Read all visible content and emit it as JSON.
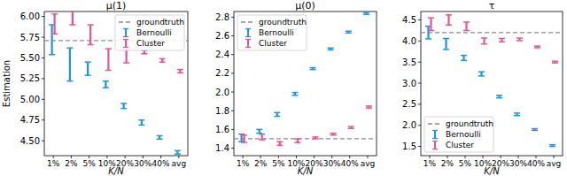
{
  "chart_data": [
    {
      "type": "errorbar",
      "title": "μ(1)",
      "x_label": "K/N",
      "y_label": "Estimation",
      "categories": [
        "1%",
        "2%",
        "5%",
        "10%",
        "20%",
        "30%",
        "40%",
        "avg"
      ],
      "ylim": [
        4.32,
        6.06
      ],
      "yticks": [
        {
          "value": 4.5,
          "label": "4.50"
        },
        {
          "value": 4.75,
          "label": "4.75"
        },
        {
          "value": 5,
          "label": "5.00"
        },
        {
          "value": 5.25,
          "label": "5.25"
        },
        {
          "value": 5.5,
          "label": "5.50"
        },
        {
          "value": 5.75,
          "label": "5.75"
        },
        {
          "value": 6,
          "label": "6.00"
        }
      ],
      "groundtruth": {
        "name": "groundtruth",
        "value": 5.71,
        "color": "#8c8c8c",
        "line_style": "dashed"
      },
      "series": [
        {
          "name": "Bernoulli",
          "color": "#1f96d8",
          "values": [
            5.72,
            5.42,
            5.37,
            5.18,
            4.92,
            4.72,
            4.54,
            4.36
          ],
          "errors": [
            0.18,
            0.2,
            0.08,
            0.04,
            0.03,
            0.03,
            0.02,
            0.02
          ]
        },
        {
          "name": "Cluster",
          "color": "#e6558f",
          "values": [
            5.91,
            6.0,
            5.78,
            5.48,
            5.52,
            5.57,
            5.47,
            5.34
          ],
          "errors": [
            0.12,
            0.1,
            0.12,
            0.13,
            0.08,
            0.02,
            0.02,
            0.02
          ]
        }
      ],
      "legend": "upper right",
      "grid": false
    },
    {
      "type": "errorbar",
      "title": "μ(0)",
      "x_label": "K/N",
      "categories": [
        "1%",
        "2%",
        "5%",
        "10%",
        "20%",
        "30%",
        "40%",
        "avg"
      ],
      "ylim": [
        1.32,
        2.86
      ],
      "yticks": [
        1.4,
        1.6,
        1.8,
        {
          "value": 2,
          "label": "2.0"
        },
        2.2,
        2.4,
        2.6,
        2.8
      ],
      "groundtruth": {
        "name": "groundtruth",
        "value": 1.5,
        "color": "#8c8c8c",
        "line_style": "dashed"
      },
      "series": [
        {
          "name": "Bernoulli",
          "color": "#1f96d8",
          "values": [
            1.51,
            1.58,
            1.76,
            1.98,
            2.25,
            2.46,
            2.64,
            2.84
          ],
          "errors": [
            0.04,
            0.02,
            0.02,
            0.015,
            0.01,
            0.01,
            0.01,
            0.01
          ]
        },
        {
          "name": "Cluster",
          "color": "#e6558f",
          "values": [
            1.5,
            1.52,
            1.45,
            1.48,
            1.51,
            1.55,
            1.62,
            1.84
          ],
          "errors": [
            0.04,
            0.03,
            0.02,
            0.02,
            0.01,
            0.01,
            0.01,
            0.01
          ]
        }
      ],
      "legend": "upper left",
      "grid": false
    },
    {
      "type": "errorbar",
      "title": "τ",
      "x_label": "K/N",
      "categories": [
        "1%",
        "2%",
        "5%",
        "10%",
        "20%",
        "30%",
        "40%",
        "avg"
      ],
      "ylim": [
        1.28,
        4.7
      ],
      "yticks": [
        1.5,
        {
          "value": 2,
          "label": "2.0"
        },
        2.5,
        {
          "value": 3,
          "label": "3.0"
        },
        3.5,
        {
          "value": 4,
          "label": "4.0"
        },
        4.5
      ],
      "groundtruth": {
        "name": "groundtruth",
        "value": 4.2,
        "color": "#8c8c8c",
        "line_style": "dashed"
      },
      "series": [
        {
          "name": "Bernoulli",
          "color": "#1f96d8",
          "values": [
            4.2,
            3.93,
            3.6,
            3.22,
            2.68,
            2.26,
            1.9,
            1.52
          ],
          "errors": [
            0.15,
            0.13,
            0.06,
            0.05,
            0.03,
            0.03,
            0.02,
            0.02
          ]
        },
        {
          "name": "Cluster",
          "color": "#e6558f",
          "values": [
            4.4,
            4.5,
            4.35,
            4.0,
            4.02,
            4.04,
            3.86,
            3.5
          ],
          "errors": [
            0.15,
            0.12,
            0.1,
            0.07,
            0.04,
            0.03,
            0.02,
            0.02
          ]
        }
      ],
      "legend": "lower left",
      "grid": false
    }
  ]
}
